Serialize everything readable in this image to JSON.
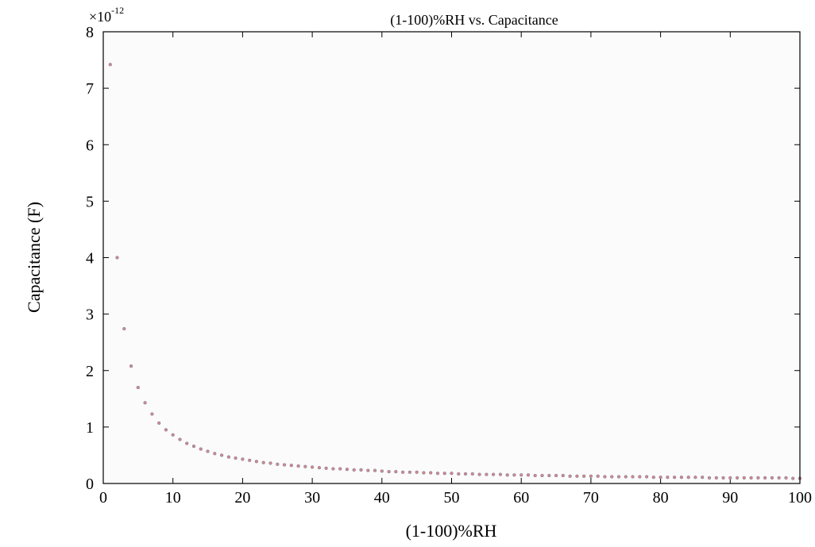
{
  "chart_data": {
    "type": "scatter",
    "title": "(1-100)%RH vs. Capacitance",
    "xlabel": "(1-100)%RH",
    "ylabel": "Capacitance (F)",
    "y_scale_label": {
      "base": "×10",
      "exponent": "-12"
    },
    "xlim": [
      0,
      100
    ],
    "ylim": [
      0,
      8
    ],
    "x_ticks": [
      "0",
      "10",
      "20",
      "30",
      "40",
      "50",
      "60",
      "70",
      "80",
      "90",
      "100"
    ],
    "y_ticks": [
      "0",
      "1",
      "2",
      "3",
      "4",
      "5",
      "6",
      "7",
      "8"
    ],
    "grid": false,
    "marker_color": "#d08a8a",
    "series": [
      {
        "x": [
          1,
          2,
          3,
          4,
          5,
          6,
          7,
          8,
          9,
          10,
          11,
          12,
          13,
          14,
          15,
          16,
          17,
          18,
          19,
          20,
          21,
          22,
          23,
          24,
          25,
          26,
          27,
          28,
          29,
          30,
          31,
          32,
          33,
          34,
          35,
          36,
          37,
          38,
          39,
          40,
          41,
          42,
          43,
          44,
          45,
          46,
          47,
          48,
          49,
          50,
          51,
          52,
          53,
          54,
          55,
          56,
          57,
          58,
          59,
          60,
          61,
          62,
          63,
          64,
          65,
          66,
          67,
          68,
          69,
          70,
          71,
          72,
          73,
          74,
          75,
          76,
          77,
          78,
          79,
          80,
          81,
          82,
          83,
          84,
          85,
          86,
          87,
          88,
          89,
          90,
          91,
          92,
          93,
          94,
          95,
          96,
          97,
          98,
          99,
          100
        ],
        "y": [
          7.42,
          4.0,
          2.74,
          2.08,
          1.7,
          1.43,
          1.23,
          1.07,
          0.95,
          0.86,
          0.78,
          0.71,
          0.66,
          0.61,
          0.57,
          0.53,
          0.5,
          0.47,
          0.45,
          0.43,
          0.41,
          0.39,
          0.37,
          0.36,
          0.34,
          0.33,
          0.32,
          0.31,
          0.3,
          0.29,
          0.28,
          0.27,
          0.26,
          0.26,
          0.25,
          0.24,
          0.24,
          0.23,
          0.23,
          0.22,
          0.21,
          0.21,
          0.2,
          0.2,
          0.2,
          0.19,
          0.19,
          0.18,
          0.18,
          0.18,
          0.17,
          0.17,
          0.17,
          0.16,
          0.16,
          0.16,
          0.16,
          0.15,
          0.15,
          0.15,
          0.15,
          0.14,
          0.14,
          0.14,
          0.14,
          0.14,
          0.13,
          0.13,
          0.13,
          0.13,
          0.13,
          0.12,
          0.12,
          0.12,
          0.12,
          0.12,
          0.12,
          0.12,
          0.11,
          0.11,
          0.11,
          0.11,
          0.11,
          0.11,
          0.11,
          0.11,
          0.1,
          0.1,
          0.1,
          0.1,
          0.1,
          0.1,
          0.1,
          0.1,
          0.1,
          0.1,
          0.1,
          0.1,
          0.09,
          0.09
        ]
      }
    ]
  }
}
